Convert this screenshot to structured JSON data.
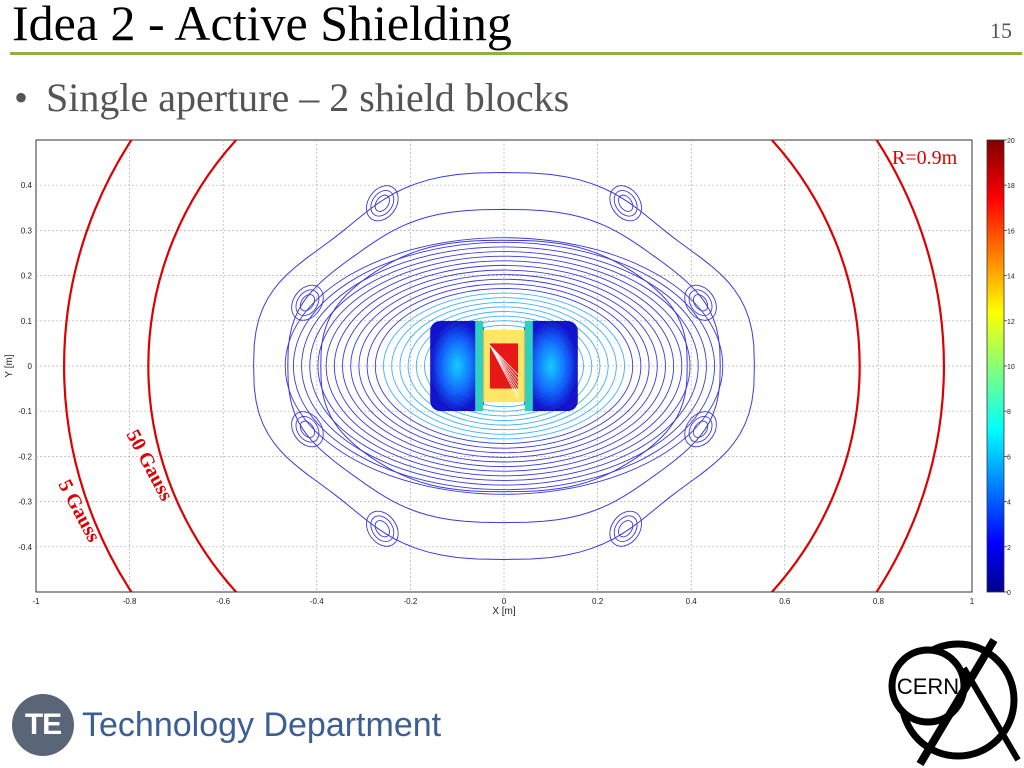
{
  "slide": {
    "title": "Idea 2 - Active Shielding",
    "number": "15",
    "bullet": "Single aperture – 2 shield blocks"
  },
  "footer": {
    "logo_text": "TE",
    "department": "Technology Department",
    "cern_logo_text": "CERN"
  },
  "chart_data": {
    "type": "contour",
    "xlabel": "X [m]",
    "ylabel": "Y [m]",
    "xlim": [
      -1,
      1
    ],
    "ylim": [
      -0.5,
      0.5
    ],
    "xticks": [
      "-1",
      "-0.8",
      "-0.6",
      "-0.4",
      "-0.2",
      "0",
      "0.2",
      "0.4",
      "0.6",
      "0.8",
      "1"
    ],
    "yticks": [
      "0.4",
      "0.3",
      "0.2",
      "0.1",
      "0",
      "-0.1",
      "-0.2",
      "-0.3",
      "-0.4"
    ],
    "grid": true,
    "colorbar": {
      "min": 0,
      "max": 20,
      "ticks": [
        "20",
        "18",
        "16",
        "14",
        "12",
        "10",
        "8",
        "6",
        "4",
        "2",
        "0"
      ]
    },
    "annotations": [
      {
        "text": "R=0.9m",
        "color": "#dd0000"
      },
      {
        "text": "50 Gauss",
        "color": "#dd0000"
      },
      {
        "text": "5 Gauss",
        "color": "#dd0000"
      }
    ],
    "fringe_field_lines": [
      {
        "label": "50 Gauss",
        "radius_m": 0.76,
        "color": "#dd0000"
      },
      {
        "label": "5 Gauss",
        "radius_m": 0.94,
        "color": "#dd0000"
      }
    ],
    "shield_block_pairs": [
      {
        "x": -0.1,
        "y": 0
      },
      {
        "x": 0.1,
        "y": 0
      }
    ],
    "colors": {
      "contour_line": "#3a3adc",
      "field_line": "#dd0000",
      "grid": "#b0b0b0"
    }
  }
}
